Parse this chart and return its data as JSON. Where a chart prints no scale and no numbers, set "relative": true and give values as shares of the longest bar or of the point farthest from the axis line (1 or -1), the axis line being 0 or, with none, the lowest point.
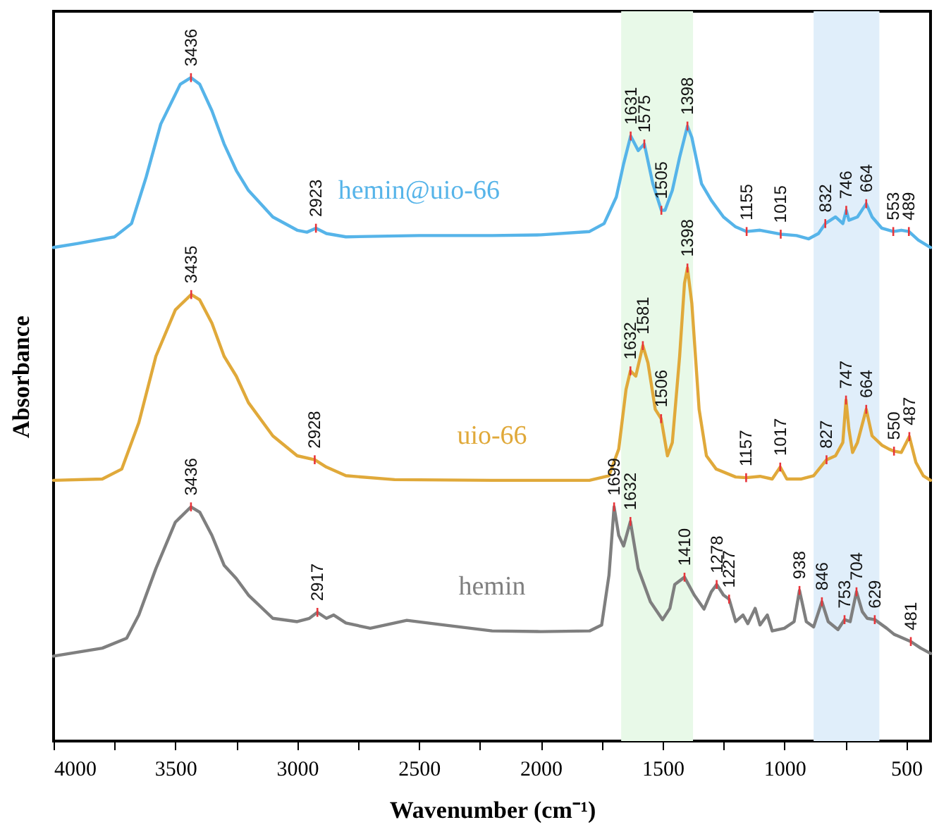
{
  "chart_data": {
    "type": "line",
    "xlabel": "Wavenumber (cm⁻¹)",
    "ylabel": "Absorbance",
    "relative": true,
    "tick_labels": "x",
    "grid": false,
    "line_style": "solid",
    "marker": "none",
    "xlim": [
      4000,
      400
    ],
    "xticks": [
      4000,
      {
        "value": 3750,
        "label": null
      },
      3500,
      {
        "value": 3250,
        "label": null
      },
      3000,
      {
        "value": 2750,
        "label": null
      },
      2500,
      {
        "value": 2250,
        "label": null
      },
      2000,
      {
        "value": 1750,
        "label": null
      },
      1500,
      {
        "value": 1250,
        "label": null
      },
      1000,
      {
        "value": 750,
        "label": null
      },
      500
    ],
    "bands": [
      {
        "axis": "x",
        "from": 1670,
        "to": 1375,
        "color": "#e8f9e8"
      },
      {
        "axis": "x",
        "from": 880,
        "to": 610,
        "color": "#e0eefa"
      }
    ],
    "series": [
      {
        "name": "hemin@uio-66",
        "color": "#56b4e9",
        "x": [
          4000,
          3900,
          3750,
          3680,
          3620,
          3560,
          3480,
          3436,
          3400,
          3350,
          3300,
          3250,
          3200,
          3100,
          3000,
          2960,
          2923,
          2880,
          2800,
          2500,
          2200,
          2000,
          1800,
          1740,
          1690,
          1660,
          1631,
          1600,
          1575,
          1540,
          1505,
          1490,
          1460,
          1430,
          1398,
          1380,
          1340,
          1300,
          1250,
          1200,
          1155,
          1100,
          1015,
          950,
          900,
          860,
          832,
          790,
          760,
          746,
          735,
          700,
          664,
          640,
          600,
          553,
          520,
          489,
          450,
          400
        ],
        "values": [
          0.744,
          0.75,
          0.76,
          0.78,
          0.85,
          0.93,
          0.99,
          1.0,
          0.99,
          0.95,
          0.9,
          0.86,
          0.83,
          0.79,
          0.77,
          0.767,
          0.773,
          0.765,
          0.76,
          0.762,
          0.762,
          0.763,
          0.768,
          0.78,
          0.82,
          0.87,
          0.912,
          0.89,
          0.9,
          0.84,
          0.8,
          0.8,
          0.83,
          0.88,
          0.927,
          0.91,
          0.84,
          0.815,
          0.79,
          0.775,
          0.768,
          0.77,
          0.764,
          0.762,
          0.757,
          0.765,
          0.78,
          0.79,
          0.78,
          0.8,
          0.785,
          0.79,
          0.81,
          0.79,
          0.773,
          0.768,
          0.77,
          0.768,
          0.755,
          0.744
        ]
      },
      {
        "name": "uio-66",
        "color": "#e0a93a",
        "x": [
          4000,
          3800,
          3720,
          3650,
          3580,
          3500,
          3435,
          3400,
          3350,
          3300,
          3250,
          3200,
          3100,
          3000,
          2928,
          2880,
          2800,
          2600,
          2200,
          1800,
          1720,
          1680,
          1650,
          1632,
          1610,
          1581,
          1560,
          1530,
          1506,
          1480,
          1460,
          1430,
          1410,
          1398,
          1380,
          1350,
          1320,
          1280,
          1200,
          1157,
          1100,
          1050,
          1017,
          990,
          930,
          880,
          827,
          790,
          760,
          747,
          735,
          720,
          700,
          664,
          640,
          600,
          570,
          550,
          520,
          487,
          460,
          430,
          400
        ],
        "values": [
          0.393,
          0.395,
          0.41,
          0.48,
          0.58,
          0.65,
          0.673,
          0.665,
          0.63,
          0.58,
          0.55,
          0.51,
          0.46,
          0.43,
          0.424,
          0.413,
          0.4,
          0.394,
          0.393,
          0.393,
          0.4,
          0.44,
          0.53,
          0.558,
          0.55,
          0.596,
          0.57,
          0.5,
          0.486,
          0.43,
          0.45,
          0.58,
          0.69,
          0.713,
          0.66,
          0.5,
          0.43,
          0.41,
          0.398,
          0.397,
          0.399,
          0.395,
          0.413,
          0.395,
          0.395,
          0.4,
          0.424,
          0.43,
          0.45,
          0.514,
          0.47,
          0.435,
          0.45,
          0.5,
          0.46,
          0.446,
          0.44,
          0.437,
          0.435,
          0.459,
          0.42,
          0.4,
          0.393
        ]
      },
      {
        "name": "hemin",
        "color": "#7f7f7f",
        "x": [
          4000,
          3800,
          3700,
          3650,
          3580,
          3500,
          3436,
          3400,
          3350,
          3300,
          3250,
          3200,
          3100,
          3000,
          2950,
          2917,
          2880,
          2850,
          2800,
          2700,
          2550,
          2400,
          2200,
          2000,
          1800,
          1750,
          1720,
          1699,
          1680,
          1660,
          1632,
          1600,
          1550,
          1500,
          1470,
          1450,
          1410,
          1370,
          1330,
          1300,
          1278,
          1250,
          1227,
          1200,
          1170,
          1150,
          1120,
          1100,
          1070,
          1050,
          1000,
          960,
          938,
          910,
          880,
          846,
          820,
          780,
          753,
          730,
          704,
          680,
          660,
          629,
          580,
          550,
          481,
          440,
          400
        ],
        "values": [
          0.128,
          0.14,
          0.155,
          0.19,
          0.26,
          0.33,
          0.353,
          0.345,
          0.31,
          0.265,
          0.245,
          0.22,
          0.185,
          0.18,
          0.185,
          0.194,
          0.185,
          0.19,
          0.178,
          0.17,
          0.182,
          0.175,
          0.166,
          0.165,
          0.166,
          0.175,
          0.25,
          0.353,
          0.31,
          0.294,
          0.331,
          0.26,
          0.21,
          0.183,
          0.2,
          0.236,
          0.247,
          0.22,
          0.199,
          0.225,
          0.236,
          0.22,
          0.214,
          0.18,
          0.19,
          0.177,
          0.2,
          0.175,
          0.19,
          0.166,
          0.17,
          0.18,
          0.227,
          0.18,
          0.172,
          0.21,
          0.18,
          0.168,
          0.183,
          0.18,
          0.225,
          0.195,
          0.185,
          0.183,
          0.17,
          0.161,
          0.15,
          0.14,
          0.132
        ]
      }
    ],
    "annotations": [
      {
        "text": "3436",
        "x": 3436,
        "y": 1.0
      },
      {
        "text": "2923",
        "x": 2923,
        "y": 0.773
      },
      {
        "text": "1631",
        "x": 1631,
        "y": 0.912
      },
      {
        "text": "1575",
        "x": 1575,
        "y": 0.9
      },
      {
        "text": "1505",
        "x": 1505,
        "y": 0.8
      },
      {
        "text": "1398",
        "x": 1398,
        "y": 0.927
      },
      {
        "text": "1155",
        "x": 1155,
        "y": 0.768
      },
      {
        "text": "1015",
        "x": 1015,
        "y": 0.764
      },
      {
        "text": "832",
        "x": 832,
        "y": 0.78
      },
      {
        "text": "746",
        "x": 746,
        "y": 0.8
      },
      {
        "text": "664",
        "x": 664,
        "y": 0.81
      },
      {
        "text": "553",
        "x": 553,
        "y": 0.768
      },
      {
        "text": "489",
        "x": 489,
        "y": 0.768
      },
      {
        "text": "3435",
        "x": 3435,
        "y": 0.673
      },
      {
        "text": "2928",
        "x": 2928,
        "y": 0.424
      },
      {
        "text": "1632",
        "x": 1632,
        "y": 0.558
      },
      {
        "text": "1581",
        "x": 1581,
        "y": 0.596
      },
      {
        "text": "1506",
        "x": 1506,
        "y": 0.486
      },
      {
        "text": "1398",
        "x": 1398,
        "y": 0.713
      },
      {
        "text": "1157",
        "x": 1157,
        "y": 0.397
      },
      {
        "text": "1017",
        "x": 1017,
        "y": 0.413
      },
      {
        "text": "827",
        "x": 827,
        "y": 0.424
      },
      {
        "text": "747",
        "x": 747,
        "y": 0.514
      },
      {
        "text": "664",
        "x": 664,
        "y": 0.5
      },
      {
        "text": "550",
        "x": 550,
        "y": 0.437
      },
      {
        "text": "487",
        "x": 487,
        "y": 0.459
      },
      {
        "text": "3436",
        "x": 3436,
        "y": 0.353
      },
      {
        "text": "2917",
        "x": 2917,
        "y": 0.194
      },
      {
        "text": "1699",
        "x": 1699,
        "y": 0.353
      },
      {
        "text": "1632",
        "x": 1632,
        "y": 0.331
      },
      {
        "text": "1410",
        "x": 1410,
        "y": 0.247
      },
      {
        "text": "1278",
        "x": 1278,
        "y": 0.236
      },
      {
        "text": "1227",
        "x": 1227,
        "y": 0.214
      },
      {
        "text": "938",
        "x": 938,
        "y": 0.227
      },
      {
        "text": "846",
        "x": 846,
        "y": 0.21
      },
      {
        "text": "753",
        "x": 753,
        "y": 0.183
      },
      {
        "text": "704",
        "x": 704,
        "y": 0.225
      },
      {
        "text": "629",
        "x": 629,
        "y": 0.183
      },
      {
        "text": "481",
        "x": 481,
        "y": 0.15
      }
    ]
  }
}
